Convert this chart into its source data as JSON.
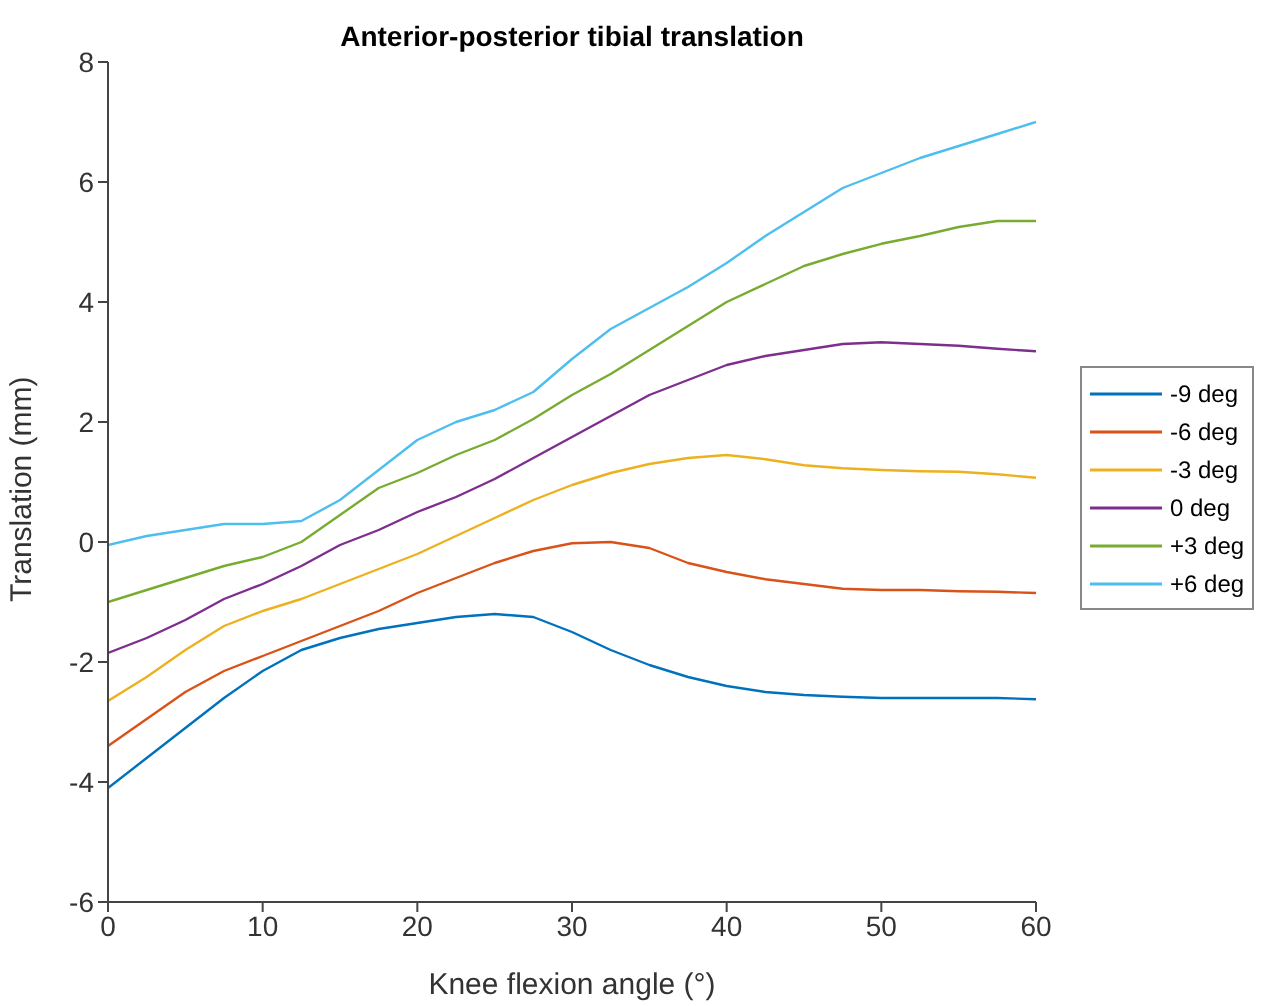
{
  "chart_data": {
    "type": "line",
    "title": "Anterior-posterior tibial translation",
    "xlabel": "Knee flexion angle (°)",
    "ylabel": "Translation (mm)",
    "x": [
      0,
      2.5,
      5,
      7.5,
      10,
      12.5,
      15,
      17.5,
      20,
      22.5,
      25,
      27.5,
      30,
      32.5,
      35,
      37.5,
      40,
      42.5,
      45,
      47.5,
      50,
      52.5,
      55,
      57.5,
      60
    ],
    "series": [
      {
        "name": "-9 deg",
        "color": "#0072bd",
        "values": [
          -4.1,
          -3.6,
          -3.1,
          -2.6,
          -2.15,
          -1.8,
          -1.6,
          -1.45,
          -1.35,
          -1.25,
          -1.2,
          -1.25,
          -1.5,
          -1.8,
          -2.05,
          -2.25,
          -2.4,
          -2.5,
          -2.55,
          -2.58,
          -2.6,
          -2.6,
          -2.6,
          -2.6,
          -2.62
        ]
      },
      {
        "name": "-6 deg",
        "color": "#d95319",
        "values": [
          -3.4,
          -2.95,
          -2.5,
          -2.15,
          -1.9,
          -1.65,
          -1.4,
          -1.15,
          -0.85,
          -0.6,
          -0.35,
          -0.15,
          -0.02,
          0,
          -0.1,
          -0.35,
          -0.5,
          -0.62,
          -0.7,
          -0.78,
          -0.8,
          -0.8,
          -0.82,
          -0.83,
          -0.85
        ]
      },
      {
        "name": "-3 deg",
        "color": "#edb120",
        "values": [
          -2.65,
          -2.25,
          -1.8,
          -1.4,
          -1.15,
          -0.95,
          -0.7,
          -0.45,
          -0.2,
          0.1,
          0.4,
          0.7,
          0.95,
          1.15,
          1.3,
          1.4,
          1.45,
          1.38,
          1.28,
          1.23,
          1.2,
          1.18,
          1.17,
          1.13,
          1.07
        ]
      },
      {
        "name": "0 deg",
        "color": "#7e2f8e",
        "values": [
          -1.85,
          -1.6,
          -1.3,
          -0.95,
          -0.7,
          -0.4,
          -0.05,
          0.2,
          0.5,
          0.75,
          1.05,
          1.4,
          1.75,
          2.1,
          2.45,
          2.7,
          2.95,
          3.1,
          3.2,
          3.3,
          3.33,
          3.3,
          3.27,
          3.22,
          3.18
        ]
      },
      {
        "name": "+3 deg",
        "color": "#77ac30",
        "values": [
          -1.0,
          -0.8,
          -0.6,
          -0.4,
          -0.25,
          0.0,
          0.45,
          0.9,
          1.15,
          1.45,
          1.7,
          2.05,
          2.45,
          2.8,
          3.2,
          3.6,
          4.0,
          4.3,
          4.6,
          4.8,
          4.97,
          5.1,
          5.25,
          5.35,
          5.35
        ]
      },
      {
        "name": "+6 deg",
        "color": "#4dbeee",
        "values": [
          -0.05,
          0.1,
          0.2,
          0.3,
          0.3,
          0.35,
          0.7,
          1.2,
          1.7,
          2.0,
          2.2,
          2.5,
          3.05,
          3.55,
          3.9,
          4.25,
          4.65,
          5.1,
          5.5,
          5.9,
          6.15,
          6.4,
          6.6,
          6.8,
          7.0
        ]
      }
    ],
    "xlim": [
      0,
      60
    ],
    "xticks": [
      0,
      10,
      20,
      30,
      40,
      50,
      60
    ],
    "ylim": [
      -6,
      8
    ],
    "yticks": [
      -6,
      -4,
      -2,
      0,
      2,
      4,
      6,
      8
    ],
    "legend": "right",
    "grid": false,
    "marker": "none",
    "line_style": "solid"
  }
}
